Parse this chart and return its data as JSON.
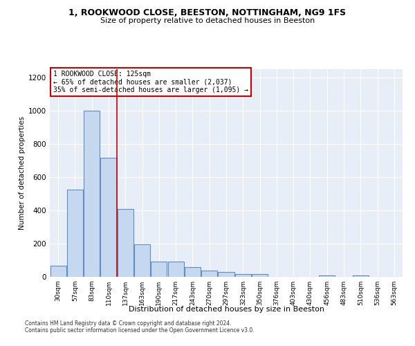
{
  "title1": "1, ROOKWOOD CLOSE, BEESTON, NOTTINGHAM, NG9 1FS",
  "title2": "Size of property relative to detached houses in Beeston",
  "xlabel": "Distribution of detached houses by size in Beeston",
  "ylabel": "Number of detached properties",
  "categories": [
    "30sqm",
    "57sqm",
    "83sqm",
    "110sqm",
    "137sqm",
    "163sqm",
    "190sqm",
    "217sqm",
    "243sqm",
    "270sqm",
    "297sqm",
    "323sqm",
    "350sqm",
    "376sqm",
    "403sqm",
    "430sqm",
    "456sqm",
    "483sqm",
    "510sqm",
    "536sqm",
    "563sqm"
  ],
  "values": [
    65,
    527,
    1000,
    717,
    407,
    197,
    90,
    90,
    57,
    38,
    30,
    18,
    18,
    0,
    0,
    0,
    10,
    0,
    10,
    0,
    0
  ],
  "bar_color": "#c5d8f0",
  "bar_edgecolor": "#5b8ec4",
  "background_color": "#e8eef8",
  "annotation_text": "1 ROOKWOOD CLOSE: 125sqm\n← 65% of detached houses are smaller (2,037)\n35% of semi-detached houses are larger (1,095) →",
  "annotation_box_color": "#ffffff",
  "annotation_border_color": "#cc0000",
  "vline_color": "#cc0000",
  "footer1": "Contains HM Land Registry data © Crown copyright and database right 2024.",
  "footer2": "Contains public sector information licensed under the Open Government Licence v3.0.",
  "ylim": [
    0,
    1250
  ],
  "yticks": [
    0,
    200,
    400,
    600,
    800,
    1000,
    1200
  ],
  "vline_x": 3.5
}
